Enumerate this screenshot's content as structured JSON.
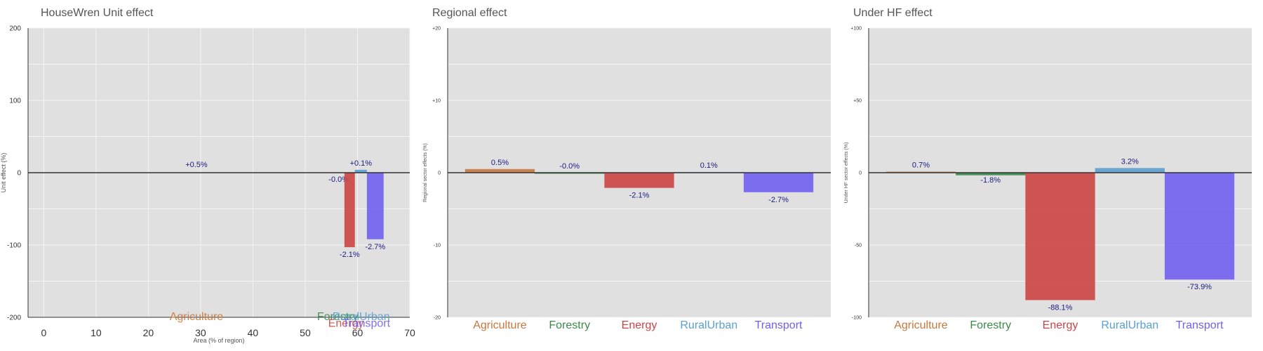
{
  "colors": {
    "background": "#ffffff",
    "plot_bg": "#e0e0e0",
    "grid": "#f4f4f4",
    "zero_line": "#333333",
    "data_label": "#1a1a80",
    "Agriculture": "#c8783c",
    "Forestry": "#3a8a4a",
    "Energy": "#cc4444",
    "RuralUrban": "#5aa0d0",
    "Transport": "#7060f0"
  },
  "chart_data": [
    {
      "type": "bar",
      "title": "HouseWren Unit effect",
      "xlabel": "Area (% of region)",
      "ylabel": "Unit effect (%)",
      "xlim": [
        -3,
        70
      ],
      "ylim": [
        -200,
        200
      ],
      "xticks": [
        0,
        10,
        20,
        30,
        40,
        50,
        60,
        70
      ],
      "xtick_labels": [
        "0",
        "10",
        "20",
        "30",
        "40",
        "50",
        "60",
        "70"
      ],
      "yticks": [
        -200,
        -100,
        0,
        100,
        200
      ],
      "ytick_labels": [
        "-200",
        "-100",
        "0",
        "100",
        "200"
      ],
      "grid": true,
      "categories": [
        "Agriculture",
        "Forestry",
        "Energy",
        "RuralUrban",
        "Transport"
      ],
      "bars": [
        {
          "category": "Agriculture",
          "x_start": 0.0,
          "x_end": 58.5,
          "value": 0.5,
          "label": "+0.5%"
        },
        {
          "category": "Forestry",
          "x_start": 58.5,
          "x_end": 58.6,
          "value": -0.3,
          "label": "-0.0%"
        },
        {
          "category": "Energy",
          "x_start": 57.5,
          "x_end": 59.5,
          "value": -103,
          "label": "-2.1%"
        },
        {
          "category": "RuralUrban",
          "x_start": 59.5,
          "x_end": 61.8,
          "value": 4,
          "label": "+0.1%"
        },
        {
          "category": "Transport",
          "x_start": 61.8,
          "x_end": 65.0,
          "value": -92,
          "label": "-2.7%"
        }
      ],
      "category_label_x": {
        "Agriculture": 29.2,
        "Forestry": 56.2,
        "Energy": 57.8,
        "RuralUrban": 60.7,
        "Transport": 61.7
      },
      "category_label_y": {
        "Agriculture": -200,
        "Forestry": -200,
        "Energy": -209,
        "RuralUrban": -200,
        "Transport": -209
      }
    },
    {
      "type": "bar",
      "title": "Regional effect",
      "xlabel": "",
      "ylabel": "Regional sector effects (%)",
      "ylim": [
        -20,
        20
      ],
      "yticks": [
        -20,
        -10,
        0,
        10,
        20
      ],
      "ytick_labels": [
        "-20",
        "-10",
        "0",
        "+10",
        "+20"
      ],
      "grid": true,
      "categories": [
        "Agriculture",
        "Forestry",
        "Energy",
        "RuralUrban",
        "Transport"
      ],
      "values": [
        0.5,
        -0.0,
        -2.1,
        0.1,
        -2.7
      ],
      "labels": [
        "0.5%",
        "-0.0%",
        "-2.1%",
        "0.1%",
        "-2.7%"
      ]
    },
    {
      "type": "bar",
      "title": "Under HF effect",
      "xlabel": "",
      "ylabel": "Under HF sector effects (%)",
      "ylim": [
        -100,
        100
      ],
      "yticks": [
        -100,
        -50,
        0,
        50,
        100
      ],
      "ytick_labels": [
        "-100",
        "-50",
        "0",
        "+50",
        "+100"
      ],
      "grid": true,
      "categories": [
        "Agriculture",
        "Forestry",
        "Energy",
        "RuralUrban",
        "Transport"
      ],
      "values": [
        0.7,
        -1.8,
        -88.1,
        3.2,
        -73.9
      ],
      "labels": [
        "0.7%",
        "-1.8%",
        "-88.1%",
        "3.2%",
        "-73.9%"
      ]
    }
  ]
}
